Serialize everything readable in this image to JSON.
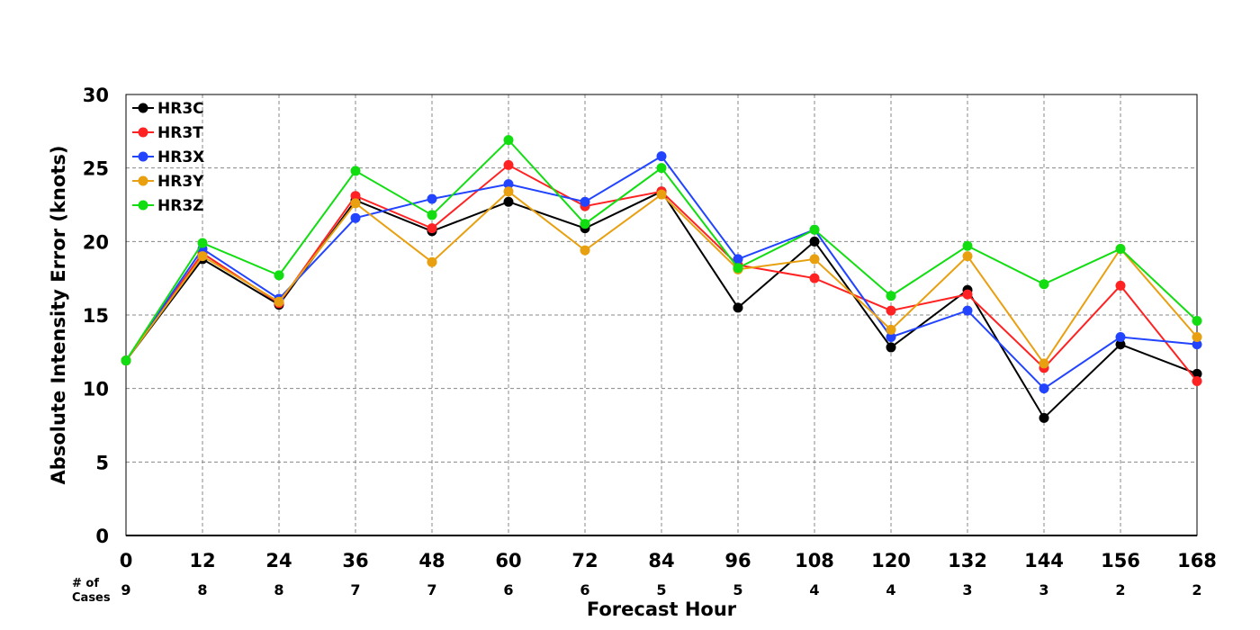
{
  "chart_data": {
    "type": "line",
    "title": "",
    "xlabel": "Forecast Hour",
    "ylabel": "Absolute Intensity Error (knots)",
    "cases_label_line1": "# of",
    "cases_label_line2": "Cases",
    "x": [
      0,
      12,
      24,
      36,
      48,
      60,
      72,
      84,
      96,
      108,
      120,
      132,
      144,
      156,
      168
    ],
    "cases": [
      9,
      8,
      8,
      7,
      7,
      6,
      6,
      5,
      5,
      4,
      4,
      3,
      3,
      2,
      2
    ],
    "xlim": [
      0,
      168
    ],
    "ylim": [
      0,
      30
    ],
    "yticks": [
      0,
      5,
      10,
      15,
      20,
      25,
      30
    ],
    "grid": true,
    "legend_position": "top-left",
    "series": [
      {
        "name": "HR3C",
        "color": "#000000",
        "values": [
          11.9,
          18.8,
          15.7,
          22.8,
          20.7,
          22.7,
          20.9,
          23.4,
          15.5,
          20.0,
          12.8,
          16.7,
          8.0,
          13.0,
          11.0
        ]
      },
      {
        "name": "HR3T",
        "color": "#ff2222",
        "values": [
          11.9,
          19.2,
          15.8,
          23.1,
          20.9,
          25.2,
          22.4,
          23.4,
          18.4,
          17.5,
          15.3,
          16.4,
          11.4,
          17.0,
          10.5
        ]
      },
      {
        "name": "HR3X",
        "color": "#2244ff",
        "values": [
          11.9,
          19.5,
          16.1,
          21.6,
          22.9,
          23.9,
          22.7,
          25.8,
          18.8,
          20.8,
          13.5,
          15.3,
          10.0,
          13.5,
          13.0
        ]
      },
      {
        "name": "HR3Y",
        "color": "#e8a010",
        "values": [
          11.9,
          19.0,
          15.9,
          22.6,
          18.6,
          23.4,
          19.4,
          23.2,
          18.1,
          18.8,
          14.0,
          19.0,
          11.7,
          19.5,
          13.5
        ]
      },
      {
        "name": "HR3Z",
        "color": "#11dd11",
        "values": [
          11.9,
          19.9,
          17.7,
          24.8,
          21.8,
          26.9,
          21.2,
          25.0,
          18.2,
          20.8,
          16.3,
          19.7,
          17.1,
          19.5,
          14.6
        ]
      }
    ]
  }
}
